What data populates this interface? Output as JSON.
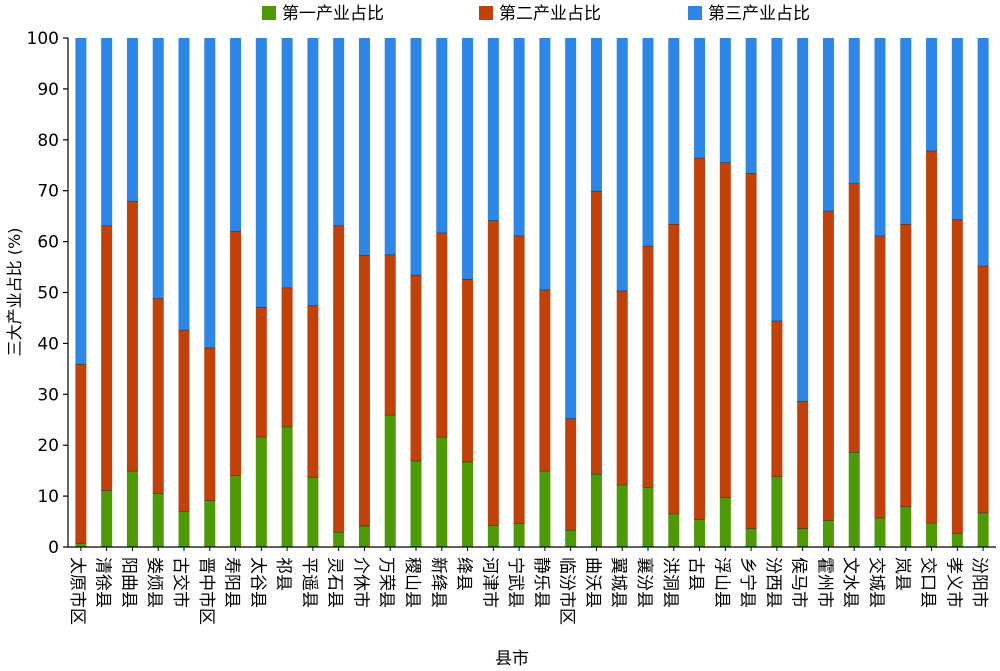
{
  "chart_data": {
    "type": "bar",
    "stacked": true,
    "title": "",
    "xlabel": "县市",
    "ylabel": "三大产业占比 (%)",
    "ylim": [
      0,
      100
    ],
    "yticks": [
      0,
      10,
      20,
      30,
      40,
      50,
      60,
      70,
      80,
      90,
      100
    ],
    "grid": false,
    "legend_position": "top",
    "categories": [
      "太原市区",
      "清徐县",
      "阳曲县",
      "娄烦县",
      "古交市",
      "晋中市区",
      "寿阳县",
      "太谷县",
      "祁县",
      "平遥县",
      "灵石县",
      "介休市",
      "万荣县",
      "稷山县",
      "新绛县",
      "绛县",
      "河津市",
      "宁武县",
      "静乐县",
      "临汾市区",
      "曲沃县",
      "翼城县",
      "襄汾县",
      "洪洞县",
      "古县",
      "浮山县",
      "乡宁县",
      "汾西县",
      "侯马市",
      "霍州市",
      "文水县",
      "交城县",
      "岚县",
      "交口县",
      "孝义市",
      "汾阳市"
    ],
    "series": [
      {
        "name": "第一产业占比",
        "color": "#4e9a06",
        "values": [
          0.7,
          11.1,
          14.9,
          10.5,
          7.0,
          9.1,
          14.0,
          21.6,
          23.6,
          13.7,
          2.9,
          4.1,
          25.9,
          16.9,
          21.6,
          16.7,
          4.2,
          4.6,
          14.9,
          3.3,
          14.3,
          12.2,
          11.7,
          6.5,
          5.4,
          9.7,
          3.6,
          13.8,
          3.6,
          5.2,
          18.6,
          5.7,
          7.9,
          4.7,
          2.7,
          6.7
        ]
      },
      {
        "name": "第二产业占比",
        "color": "#c0410a",
        "values": [
          35.2,
          52.0,
          53.0,
          38.3,
          35.6,
          30.0,
          48.0,
          25.5,
          27.3,
          33.7,
          60.2,
          53.2,
          31.5,
          36.5,
          40.1,
          35.9,
          59.9,
          56.5,
          35.6,
          21.9,
          55.6,
          38.1,
          47.4,
          56.9,
          71.0,
          65.8,
          69.8,
          30.6,
          25.0,
          60.8,
          52.8,
          55.4,
          55.5,
          73.1,
          61.6,
          48.5
        ]
      },
      {
        "name": "第三产业占比",
        "color": "#2e86e6",
        "values": [
          64.1,
          36.9,
          32.1,
          51.2,
          57.4,
          60.9,
          38.0,
          52.9,
          49.1,
          52.6,
          36.9,
          42.7,
          42.6,
          46.6,
          38.3,
          47.4,
          35.9,
          38.9,
          49.5,
          74.8,
          30.1,
          49.7,
          40.9,
          36.6,
          23.6,
          24.5,
          26.6,
          55.6,
          71.4,
          34.0,
          28.6,
          38.9,
          36.6,
          22.2,
          35.7,
          44.8
        ]
      }
    ]
  }
}
